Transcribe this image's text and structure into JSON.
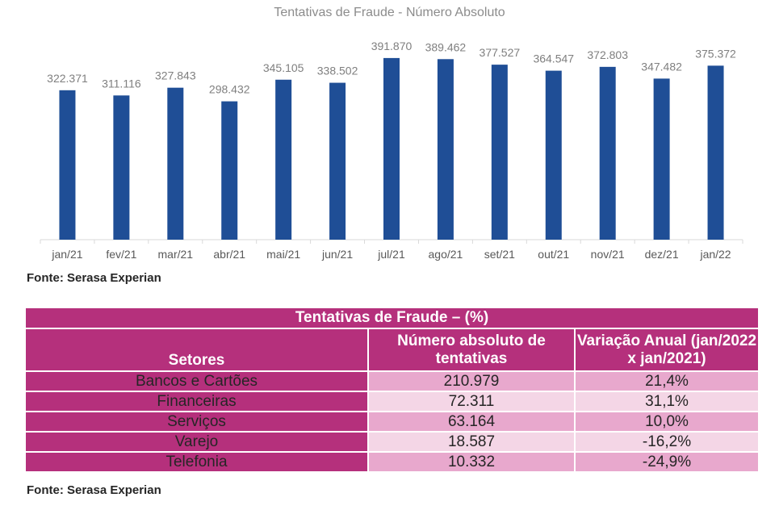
{
  "chart_data": {
    "type": "bar",
    "title": "Tentativas de Fraude - Número Absoluto",
    "categories": [
      "jan/21",
      "fev/21",
      "mar/21",
      "abr/21",
      "mai/21",
      "jun/21",
      "jul/21",
      "ago/21",
      "set/21",
      "out/21",
      "nov/21",
      "dez/21",
      "jan/22"
    ],
    "values": [
      322371,
      311116,
      327843,
      298432,
      345105,
      338502,
      391870,
      389462,
      377527,
      364547,
      372803,
      347482,
      375372
    ],
    "value_labels": [
      "322.371",
      "311.116",
      "327.843",
      "298.432",
      "345.105",
      "338.502",
      "391.870",
      "389.462",
      "377.527",
      "364.547",
      "372.803",
      "347.482",
      "375.372"
    ],
    "xlabel": "",
    "ylabel": "",
    "ylim": [
      0,
      430000
    ],
    "grid": false,
    "bar_color": "#1f4e96"
  },
  "source_1": "Fonte: Serasa Experian",
  "table": {
    "title": "Tentativas de Fraude – (%)",
    "headers": [
      "Setores",
      "Número absoluto de tentativas",
      "Variação Anual (jan/2022 x jan/2021)"
    ],
    "rows": [
      {
        "setor": "Bancos e Cartões",
        "numero": "210.979",
        "variacao": "21,4%"
      },
      {
        "setor": "Financeiras",
        "numero": "72.311",
        "variacao": "31,1%"
      },
      {
        "setor": "Serviços",
        "numero": "63.164",
        "variacao": "10,0%"
      },
      {
        "setor": "Varejo",
        "numero": "18.587",
        "variacao": "-16,2%"
      },
      {
        "setor": "Telefonia",
        "numero": "10.332",
        "variacao": "-24,9%"
      }
    ],
    "header_color": "#b5307c",
    "row_dark_color": "#e8a8cd",
    "row_light_color": "#f4d6e6"
  },
  "source_2": "Fonte: Serasa Experian"
}
